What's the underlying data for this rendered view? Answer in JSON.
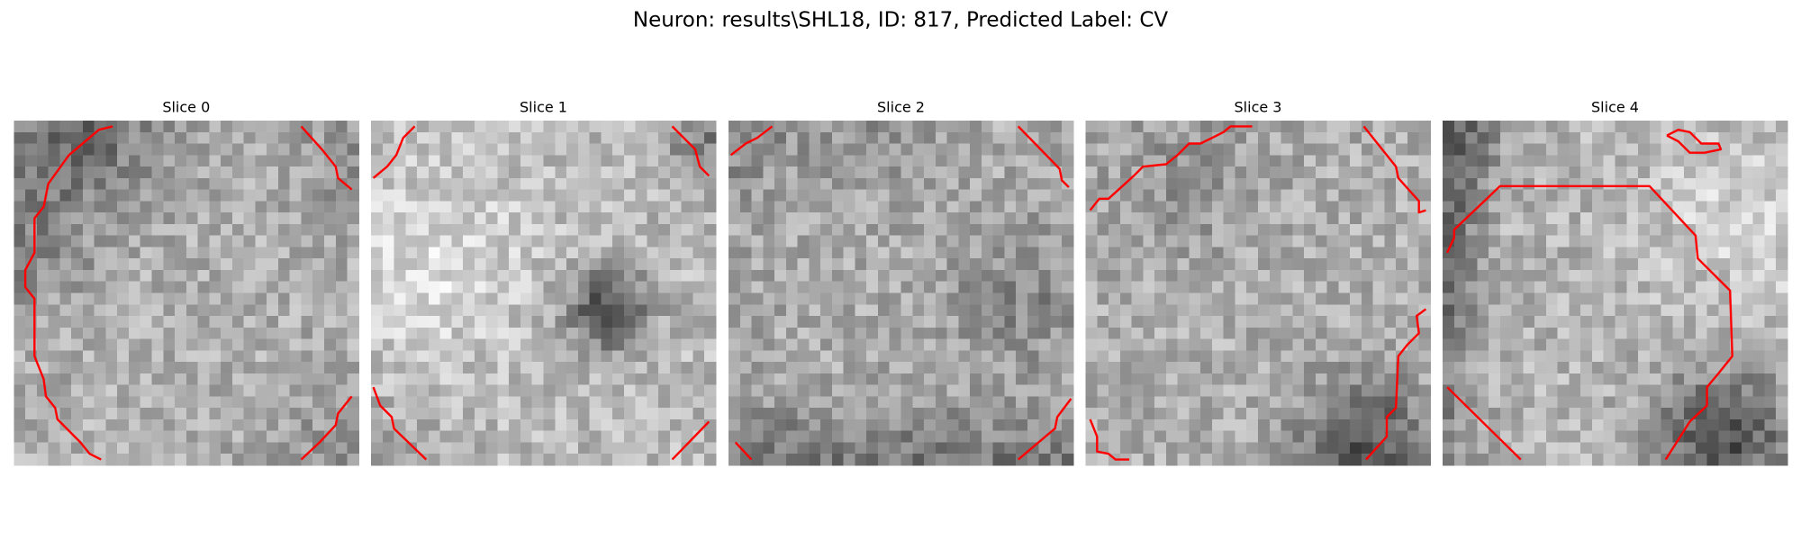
{
  "header": {
    "title": "Neuron: results\\SHL18, ID: 817, Predicted Label: CV"
  },
  "panels": [
    {
      "title": "Slice 0"
    },
    {
      "title": "Slice 1"
    },
    {
      "title": "Slice 2"
    },
    {
      "title": "Slice 3"
    },
    {
      "title": "Slice 4"
    }
  ]
}
